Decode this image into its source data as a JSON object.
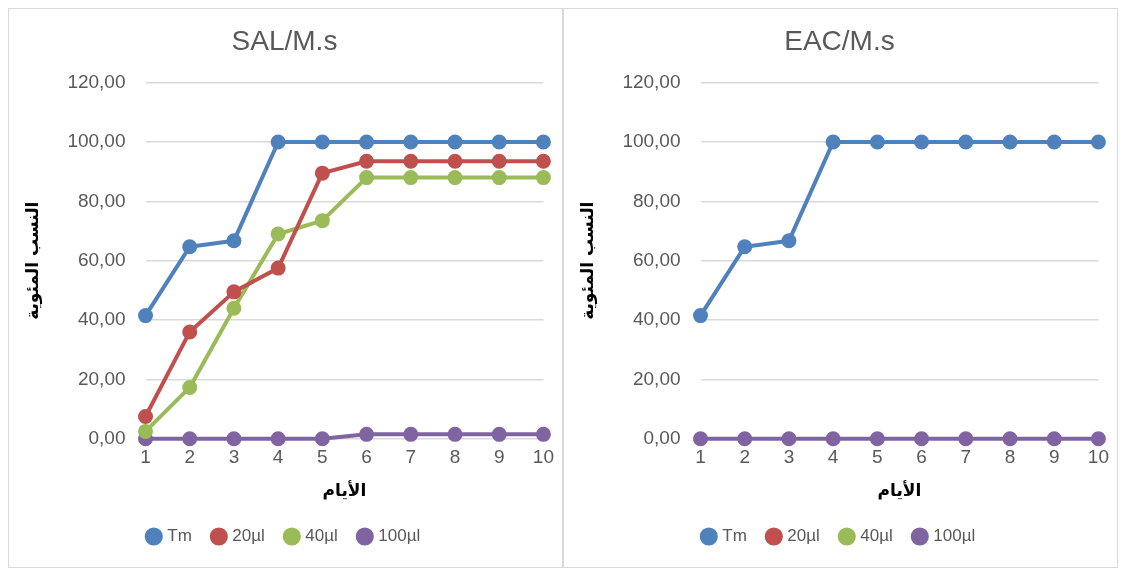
{
  "chart_data": [
    {
      "type": "line",
      "title": "SAL/M.s",
      "xlabel": "الأيام",
      "ylabel": "النسب المئوية",
      "categories": [
        "1",
        "2",
        "3",
        "4",
        "5",
        "6",
        "7",
        "8",
        "9",
        "10"
      ],
      "series": [
        {
          "name": "Tm",
          "color": "#4f81bd",
          "values": [
            41.5,
            64.7,
            66.7,
            100,
            100,
            100,
            100,
            100,
            100,
            100
          ]
        },
        {
          "name": "20µl",
          "color": "#c0504d",
          "values": [
            7.5,
            36,
            49.5,
            57.5,
            89.5,
            93.5,
            93.5,
            93.5,
            93.5,
            93.5
          ]
        },
        {
          "name": "40µl",
          "color": "#9bbb59",
          "values": [
            2.5,
            17.3,
            44,
            69,
            73.5,
            88,
            88,
            88,
            88,
            88
          ]
        },
        {
          "name": "100µl",
          "color": "#8064a2",
          "values": [
            0,
            0,
            0,
            0,
            0,
            1.5,
            1.5,
            1.5,
            1.5,
            1.5
          ]
        }
      ],
      "ylim": [
        0,
        120
      ],
      "yticks": [
        {
          "value": 0,
          "label": "0,00"
        },
        {
          "value": 20,
          "label": "20,00"
        },
        {
          "value": 40,
          "label": "40,00"
        },
        {
          "value": 60,
          "label": "60,00"
        },
        {
          "value": 80,
          "label": "80,00"
        },
        {
          "value": 100,
          "label": "100,00"
        },
        {
          "value": 120,
          "label": "120,00"
        }
      ],
      "grid": "y",
      "legend": "bottom",
      "marker": "circle",
      "line_style": "solid"
    },
    {
      "type": "line",
      "title": "EAC/M.s",
      "xlabel": "الأيام",
      "ylabel": "النسب المئوية",
      "categories": [
        "1",
        "2",
        "3",
        "4",
        "5",
        "6",
        "7",
        "8",
        "9",
        "10"
      ],
      "series": [
        {
          "name": "Tm",
          "color": "#4f81bd",
          "values": [
            41.5,
            64.7,
            66.7,
            100,
            100,
            100,
            100,
            100,
            100,
            100
          ]
        },
        {
          "name": "20µl",
          "color": "#c0504d",
          "values": [
            null,
            null,
            null,
            null,
            null,
            null,
            null,
            null,
            null,
            null
          ]
        },
        {
          "name": "40µl",
          "color": "#9bbb59",
          "values": [
            null,
            null,
            null,
            null,
            null,
            null,
            null,
            null,
            null,
            null
          ]
        },
        {
          "name": "100µl",
          "color": "#8064a2",
          "values": [
            0,
            0,
            0,
            0,
            0,
            0,
            0,
            0,
            0,
            0
          ]
        }
      ],
      "ylim": [
        0,
        120
      ],
      "yticks": [
        {
          "value": 0,
          "label": "0,00"
        },
        {
          "value": 20,
          "label": "20,00"
        },
        {
          "value": 40,
          "label": "40,00"
        },
        {
          "value": 60,
          "label": "60,00"
        },
        {
          "value": 80,
          "label": "80,00"
        },
        {
          "value": 100,
          "label": "100,00"
        },
        {
          "value": 120,
          "label": "120,00"
        }
      ],
      "grid": "y",
      "legend": "bottom",
      "marker": "circle",
      "line_style": "solid"
    }
  ]
}
